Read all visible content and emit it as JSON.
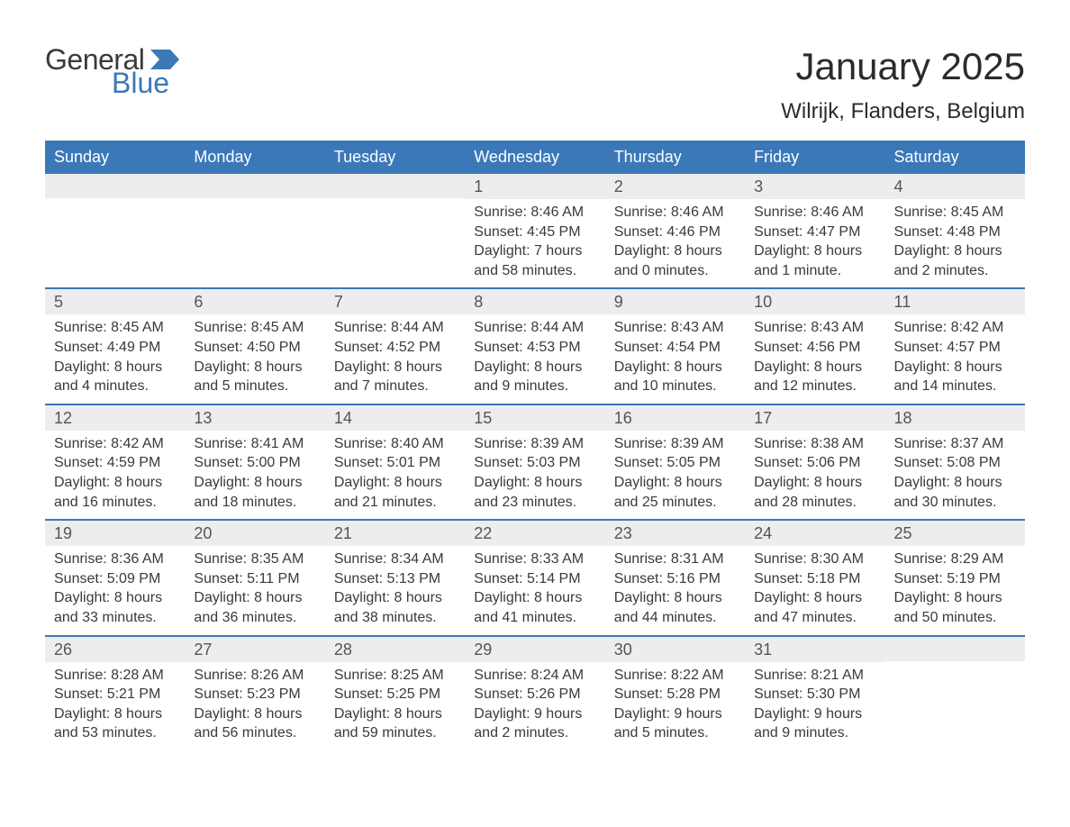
{
  "brand": {
    "word1": "General",
    "word2": "Blue",
    "icon_color": "#3b78b8"
  },
  "title": "January 2025",
  "location": "Wilrijk, Flanders, Belgium",
  "colors": {
    "header_bg": "#3b78b8",
    "header_text": "#ffffff",
    "daynum_bg": "#ededed",
    "daynum_text": "#555555",
    "body_text": "#3a3a3a",
    "week_border": "#3b78b8"
  },
  "day_names": [
    "Sunday",
    "Monday",
    "Tuesday",
    "Wednesday",
    "Thursday",
    "Friday",
    "Saturday"
  ],
  "weeks": [
    [
      {
        "day": "",
        "lines": []
      },
      {
        "day": "",
        "lines": []
      },
      {
        "day": "",
        "lines": []
      },
      {
        "day": "1",
        "lines": [
          "Sunrise: 8:46 AM",
          "Sunset: 4:45 PM",
          "Daylight: 7 hours",
          "and 58 minutes."
        ]
      },
      {
        "day": "2",
        "lines": [
          "Sunrise: 8:46 AM",
          "Sunset: 4:46 PM",
          "Daylight: 8 hours",
          "and 0 minutes."
        ]
      },
      {
        "day": "3",
        "lines": [
          "Sunrise: 8:46 AM",
          "Sunset: 4:47 PM",
          "Daylight: 8 hours",
          "and 1 minute."
        ]
      },
      {
        "day": "4",
        "lines": [
          "Sunrise: 8:45 AM",
          "Sunset: 4:48 PM",
          "Daylight: 8 hours",
          "and 2 minutes."
        ]
      }
    ],
    [
      {
        "day": "5",
        "lines": [
          "Sunrise: 8:45 AM",
          "Sunset: 4:49 PM",
          "Daylight: 8 hours",
          "and 4 minutes."
        ]
      },
      {
        "day": "6",
        "lines": [
          "Sunrise: 8:45 AM",
          "Sunset: 4:50 PM",
          "Daylight: 8 hours",
          "and 5 minutes."
        ]
      },
      {
        "day": "7",
        "lines": [
          "Sunrise: 8:44 AM",
          "Sunset: 4:52 PM",
          "Daylight: 8 hours",
          "and 7 minutes."
        ]
      },
      {
        "day": "8",
        "lines": [
          "Sunrise: 8:44 AM",
          "Sunset: 4:53 PM",
          "Daylight: 8 hours",
          "and 9 minutes."
        ]
      },
      {
        "day": "9",
        "lines": [
          "Sunrise: 8:43 AM",
          "Sunset: 4:54 PM",
          "Daylight: 8 hours",
          "and 10 minutes."
        ]
      },
      {
        "day": "10",
        "lines": [
          "Sunrise: 8:43 AM",
          "Sunset: 4:56 PM",
          "Daylight: 8 hours",
          "and 12 minutes."
        ]
      },
      {
        "day": "11",
        "lines": [
          "Sunrise: 8:42 AM",
          "Sunset: 4:57 PM",
          "Daylight: 8 hours",
          "and 14 minutes."
        ]
      }
    ],
    [
      {
        "day": "12",
        "lines": [
          "Sunrise: 8:42 AM",
          "Sunset: 4:59 PM",
          "Daylight: 8 hours",
          "and 16 minutes."
        ]
      },
      {
        "day": "13",
        "lines": [
          "Sunrise: 8:41 AM",
          "Sunset: 5:00 PM",
          "Daylight: 8 hours",
          "and 18 minutes."
        ]
      },
      {
        "day": "14",
        "lines": [
          "Sunrise: 8:40 AM",
          "Sunset: 5:01 PM",
          "Daylight: 8 hours",
          "and 21 minutes."
        ]
      },
      {
        "day": "15",
        "lines": [
          "Sunrise: 8:39 AM",
          "Sunset: 5:03 PM",
          "Daylight: 8 hours",
          "and 23 minutes."
        ]
      },
      {
        "day": "16",
        "lines": [
          "Sunrise: 8:39 AM",
          "Sunset: 5:05 PM",
          "Daylight: 8 hours",
          "and 25 minutes."
        ]
      },
      {
        "day": "17",
        "lines": [
          "Sunrise: 8:38 AM",
          "Sunset: 5:06 PM",
          "Daylight: 8 hours",
          "and 28 minutes."
        ]
      },
      {
        "day": "18",
        "lines": [
          "Sunrise: 8:37 AM",
          "Sunset: 5:08 PM",
          "Daylight: 8 hours",
          "and 30 minutes."
        ]
      }
    ],
    [
      {
        "day": "19",
        "lines": [
          "Sunrise: 8:36 AM",
          "Sunset: 5:09 PM",
          "Daylight: 8 hours",
          "and 33 minutes."
        ]
      },
      {
        "day": "20",
        "lines": [
          "Sunrise: 8:35 AM",
          "Sunset: 5:11 PM",
          "Daylight: 8 hours",
          "and 36 minutes."
        ]
      },
      {
        "day": "21",
        "lines": [
          "Sunrise: 8:34 AM",
          "Sunset: 5:13 PM",
          "Daylight: 8 hours",
          "and 38 minutes."
        ]
      },
      {
        "day": "22",
        "lines": [
          "Sunrise: 8:33 AM",
          "Sunset: 5:14 PM",
          "Daylight: 8 hours",
          "and 41 minutes."
        ]
      },
      {
        "day": "23",
        "lines": [
          "Sunrise: 8:31 AM",
          "Sunset: 5:16 PM",
          "Daylight: 8 hours",
          "and 44 minutes."
        ]
      },
      {
        "day": "24",
        "lines": [
          "Sunrise: 8:30 AM",
          "Sunset: 5:18 PM",
          "Daylight: 8 hours",
          "and 47 minutes."
        ]
      },
      {
        "day": "25",
        "lines": [
          "Sunrise: 8:29 AM",
          "Sunset: 5:19 PM",
          "Daylight: 8 hours",
          "and 50 minutes."
        ]
      }
    ],
    [
      {
        "day": "26",
        "lines": [
          "Sunrise: 8:28 AM",
          "Sunset: 5:21 PM",
          "Daylight: 8 hours",
          "and 53 minutes."
        ]
      },
      {
        "day": "27",
        "lines": [
          "Sunrise: 8:26 AM",
          "Sunset: 5:23 PM",
          "Daylight: 8 hours",
          "and 56 minutes."
        ]
      },
      {
        "day": "28",
        "lines": [
          "Sunrise: 8:25 AM",
          "Sunset: 5:25 PM",
          "Daylight: 8 hours",
          "and 59 minutes."
        ]
      },
      {
        "day": "29",
        "lines": [
          "Sunrise: 8:24 AM",
          "Sunset: 5:26 PM",
          "Daylight: 9 hours",
          "and 2 minutes."
        ]
      },
      {
        "day": "30",
        "lines": [
          "Sunrise: 8:22 AM",
          "Sunset: 5:28 PM",
          "Daylight: 9 hours",
          "and 5 minutes."
        ]
      },
      {
        "day": "31",
        "lines": [
          "Sunrise: 8:21 AM",
          "Sunset: 5:30 PM",
          "Daylight: 9 hours",
          "and 9 minutes."
        ]
      },
      {
        "day": "",
        "lines": []
      }
    ]
  ]
}
